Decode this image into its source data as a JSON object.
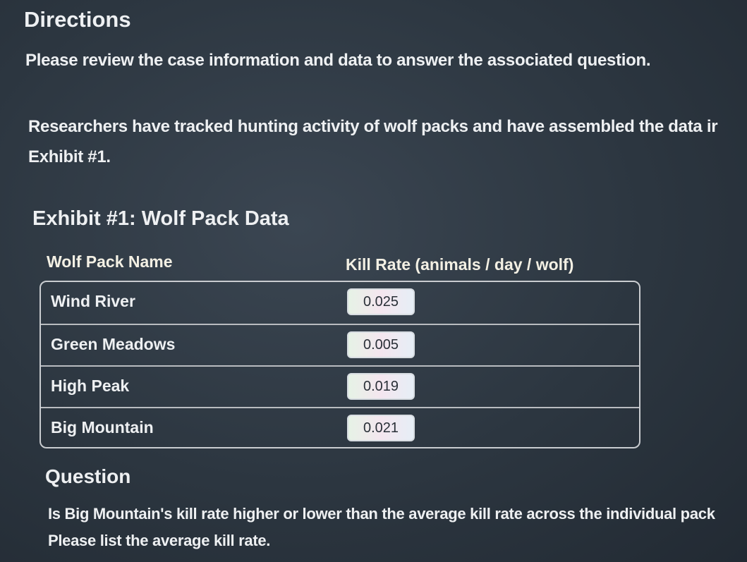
{
  "header": {
    "title": "Directions",
    "instruction": "Please review the case information and data to answer the associated question."
  },
  "case": {
    "lines": [
      "Researchers have tracked hunting activity of wolf packs and have assembled the data ir",
      "Exhibit #1."
    ]
  },
  "exhibit": {
    "title": "Exhibit #1: Wolf Pack Data",
    "columns": [
      "Wolf Pack Name",
      "Kill Rate (animals / day / wolf)"
    ],
    "rows": [
      [
        "Wind River",
        "0.025"
      ],
      [
        "Green Meadows",
        "0.005"
      ],
      [
        "High Peak",
        "0.019"
      ],
      [
        "Big Mountain",
        "0.021"
      ]
    ]
  },
  "question": {
    "title": "Question",
    "lines": [
      "Is Big Mountain's kill rate higher or lower than the average kill rate across the individual pack",
      "Please list the average kill rate."
    ]
  }
}
